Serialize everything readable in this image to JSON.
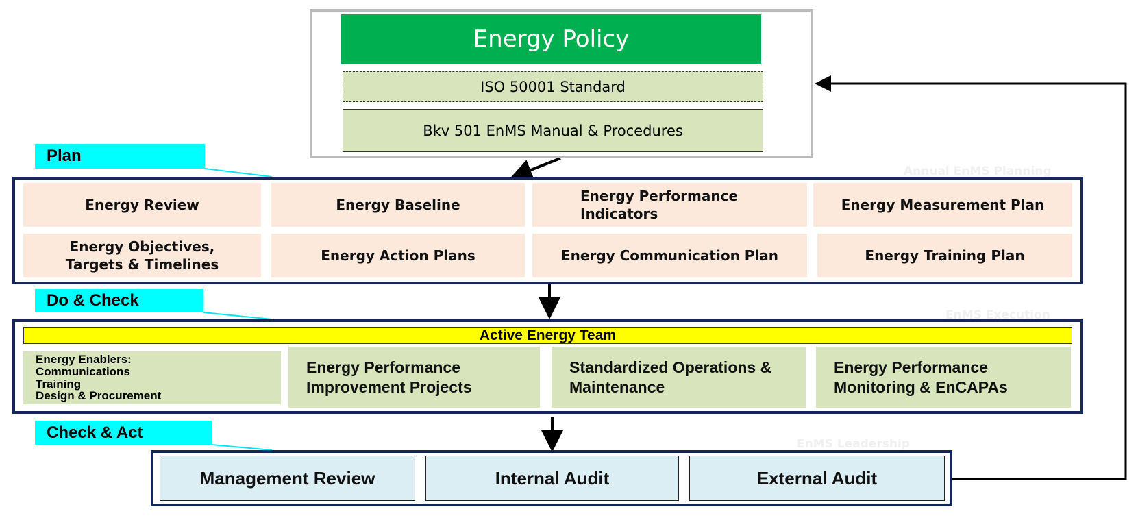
{
  "policy": {
    "title": "Energy Policy",
    "standard": "ISO 50001 Standard",
    "manual": "Bkv 501 EnMS Manual & Procedures"
  },
  "plan": {
    "label": "Plan",
    "note": "Annual EnMS Planning",
    "items": [
      "Energy Review",
      "Energy Baseline",
      "Energy Performance Indicators",
      "Energy Measurement Plan",
      "Energy Objectives, Targets & Timelines",
      "Energy Action Plans",
      "Energy Communication Plan",
      "Energy Training Plan"
    ]
  },
  "do_check": {
    "label": "Do & Check",
    "note": "EnMS Execution",
    "banner": "Active Energy Team",
    "enablers": [
      "Energy Enablers:",
      "Communications",
      "Training",
      "Design & Procurement"
    ],
    "items": [
      "Energy Performance Improvement Projects",
      "Standardized Operations & Maintenance",
      "Energy Performance Monitoring & EnCAPAs"
    ]
  },
  "check_act": {
    "label": "Check & Act",
    "note": "EnMS Leadership",
    "items": [
      "Management Review",
      "Internal Audit",
      "External Audit"
    ]
  }
}
